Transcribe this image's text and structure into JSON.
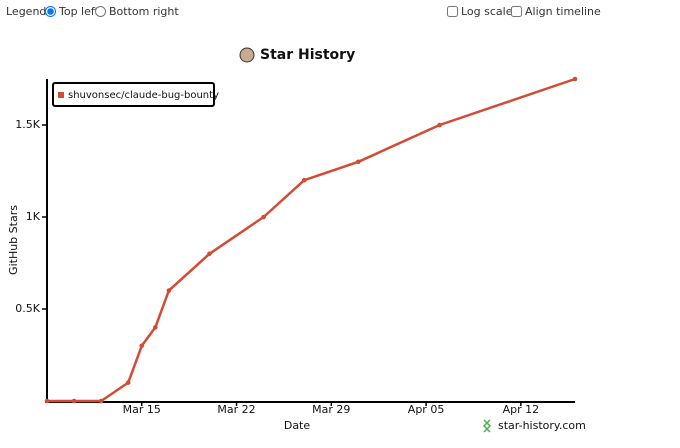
{
  "controls": {
    "legend_label": "Legend",
    "legend_options": [
      {
        "label": "Top left",
        "checked": true
      },
      {
        "label": "Bottom right",
        "checked": false
      }
    ],
    "checkboxes": [
      {
        "label": "Log scale",
        "checked": false
      },
      {
        "label": "Align timeline",
        "checked": false
      }
    ]
  },
  "chart_data": {
    "type": "line",
    "title": "Star History",
    "x_label": "Date",
    "y_label": "GitHub Stars",
    "x": [
      "Mar 08",
      "Mar 10",
      "Mar 12",
      "Mar 14",
      "Mar 15",
      "Mar 16",
      "Mar 17",
      "Mar 20",
      "Mar 24",
      "Mar 27",
      "Mar 31",
      "Apr 06",
      "Apr 16"
    ],
    "series": [
      {
        "name": "shuvonsec/claude-bug-bounty",
        "color": "#d14b35",
        "values": [
          0,
          0,
          0,
          100,
          300,
          400,
          600,
          800,
          1000,
          1200,
          1300,
          1500,
          1750
        ]
      }
    ],
    "xlim": [
      "Mar 08",
      "Apr 16"
    ],
    "xticks": [
      "Mar 15",
      "Mar 22",
      "Mar 29",
      "Apr 05",
      "Apr 12"
    ],
    "ylim": [
      0,
      1750
    ],
    "yticks": [
      {
        "value": 500,
        "label": "0.5K"
      },
      {
        "value": 1000,
        "label": "1K"
      },
      {
        "value": 1500,
        "label": "1.5K"
      }
    ],
    "log_scale": false,
    "legend": "top-left",
    "watermark": "star-history.com"
  }
}
